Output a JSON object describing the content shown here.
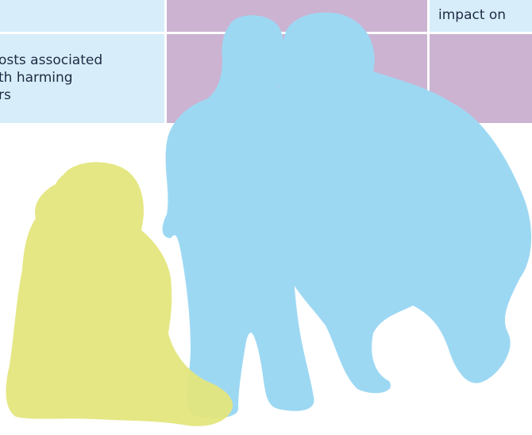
{
  "table": {
    "top_right_cell": "impact on",
    "left_cell_lines": [
      "osts associated",
      "th harming",
      "rs"
    ]
  }
}
